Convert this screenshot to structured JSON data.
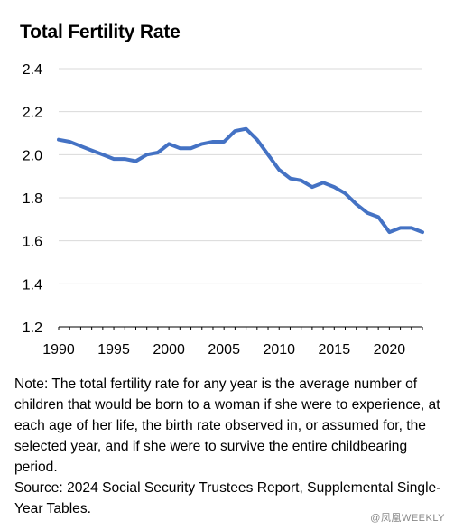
{
  "chart_data": {
    "type": "line",
    "title": "Total Fertility Rate",
    "xlabel": "",
    "ylabel": "",
    "xlim": [
      1990,
      2023
    ],
    "ylim": [
      1.2,
      2.4
    ],
    "x_ticks": [
      "1990",
      "1995",
      "2000",
      "2005",
      "2010",
      "2015",
      "2020"
    ],
    "y_ticks": [
      "1.2",
      "1.4",
      "1.6",
      "1.8",
      "2.0",
      "2.2",
      "2.4"
    ],
    "grid": "horizontal",
    "legend": "none",
    "series": [
      {
        "color": "#4472c4",
        "x": [
          1990,
          1991,
          1992,
          1993,
          1994,
          1995,
          1996,
          1997,
          1998,
          1999,
          2000,
          2001,
          2002,
          2003,
          2004,
          2005,
          2006,
          2007,
          2008,
          2009,
          2010,
          2011,
          2012,
          2013,
          2014,
          2015,
          2016,
          2017,
          2018,
          2019,
          2020,
          2021,
          2022,
          2023
        ],
        "y": [
          2.07,
          2.06,
          2.04,
          2.02,
          2.0,
          1.98,
          1.98,
          1.97,
          2.0,
          2.01,
          2.05,
          2.03,
          2.03,
          2.05,
          2.06,
          2.06,
          2.11,
          2.12,
          2.07,
          2.0,
          1.93,
          1.89,
          1.88,
          1.85,
          1.87,
          1.85,
          1.82,
          1.77,
          1.73,
          1.71,
          1.64,
          1.66,
          1.66,
          1.64
        ]
      }
    ]
  },
  "note": {
    "line1": "Note: The total fertility rate for any year is the average number of children that would be born to a woman if she were to experience, at each age of her life, the birth rate observed in, or assumed for, the selected year, and if she were to survive the entire childbearing period.",
    "line2": "Source: 2024 Social Security Trustees Report, Supplemental Single-Year Tables."
  },
  "watermark": "@凤凰WEEKLY"
}
